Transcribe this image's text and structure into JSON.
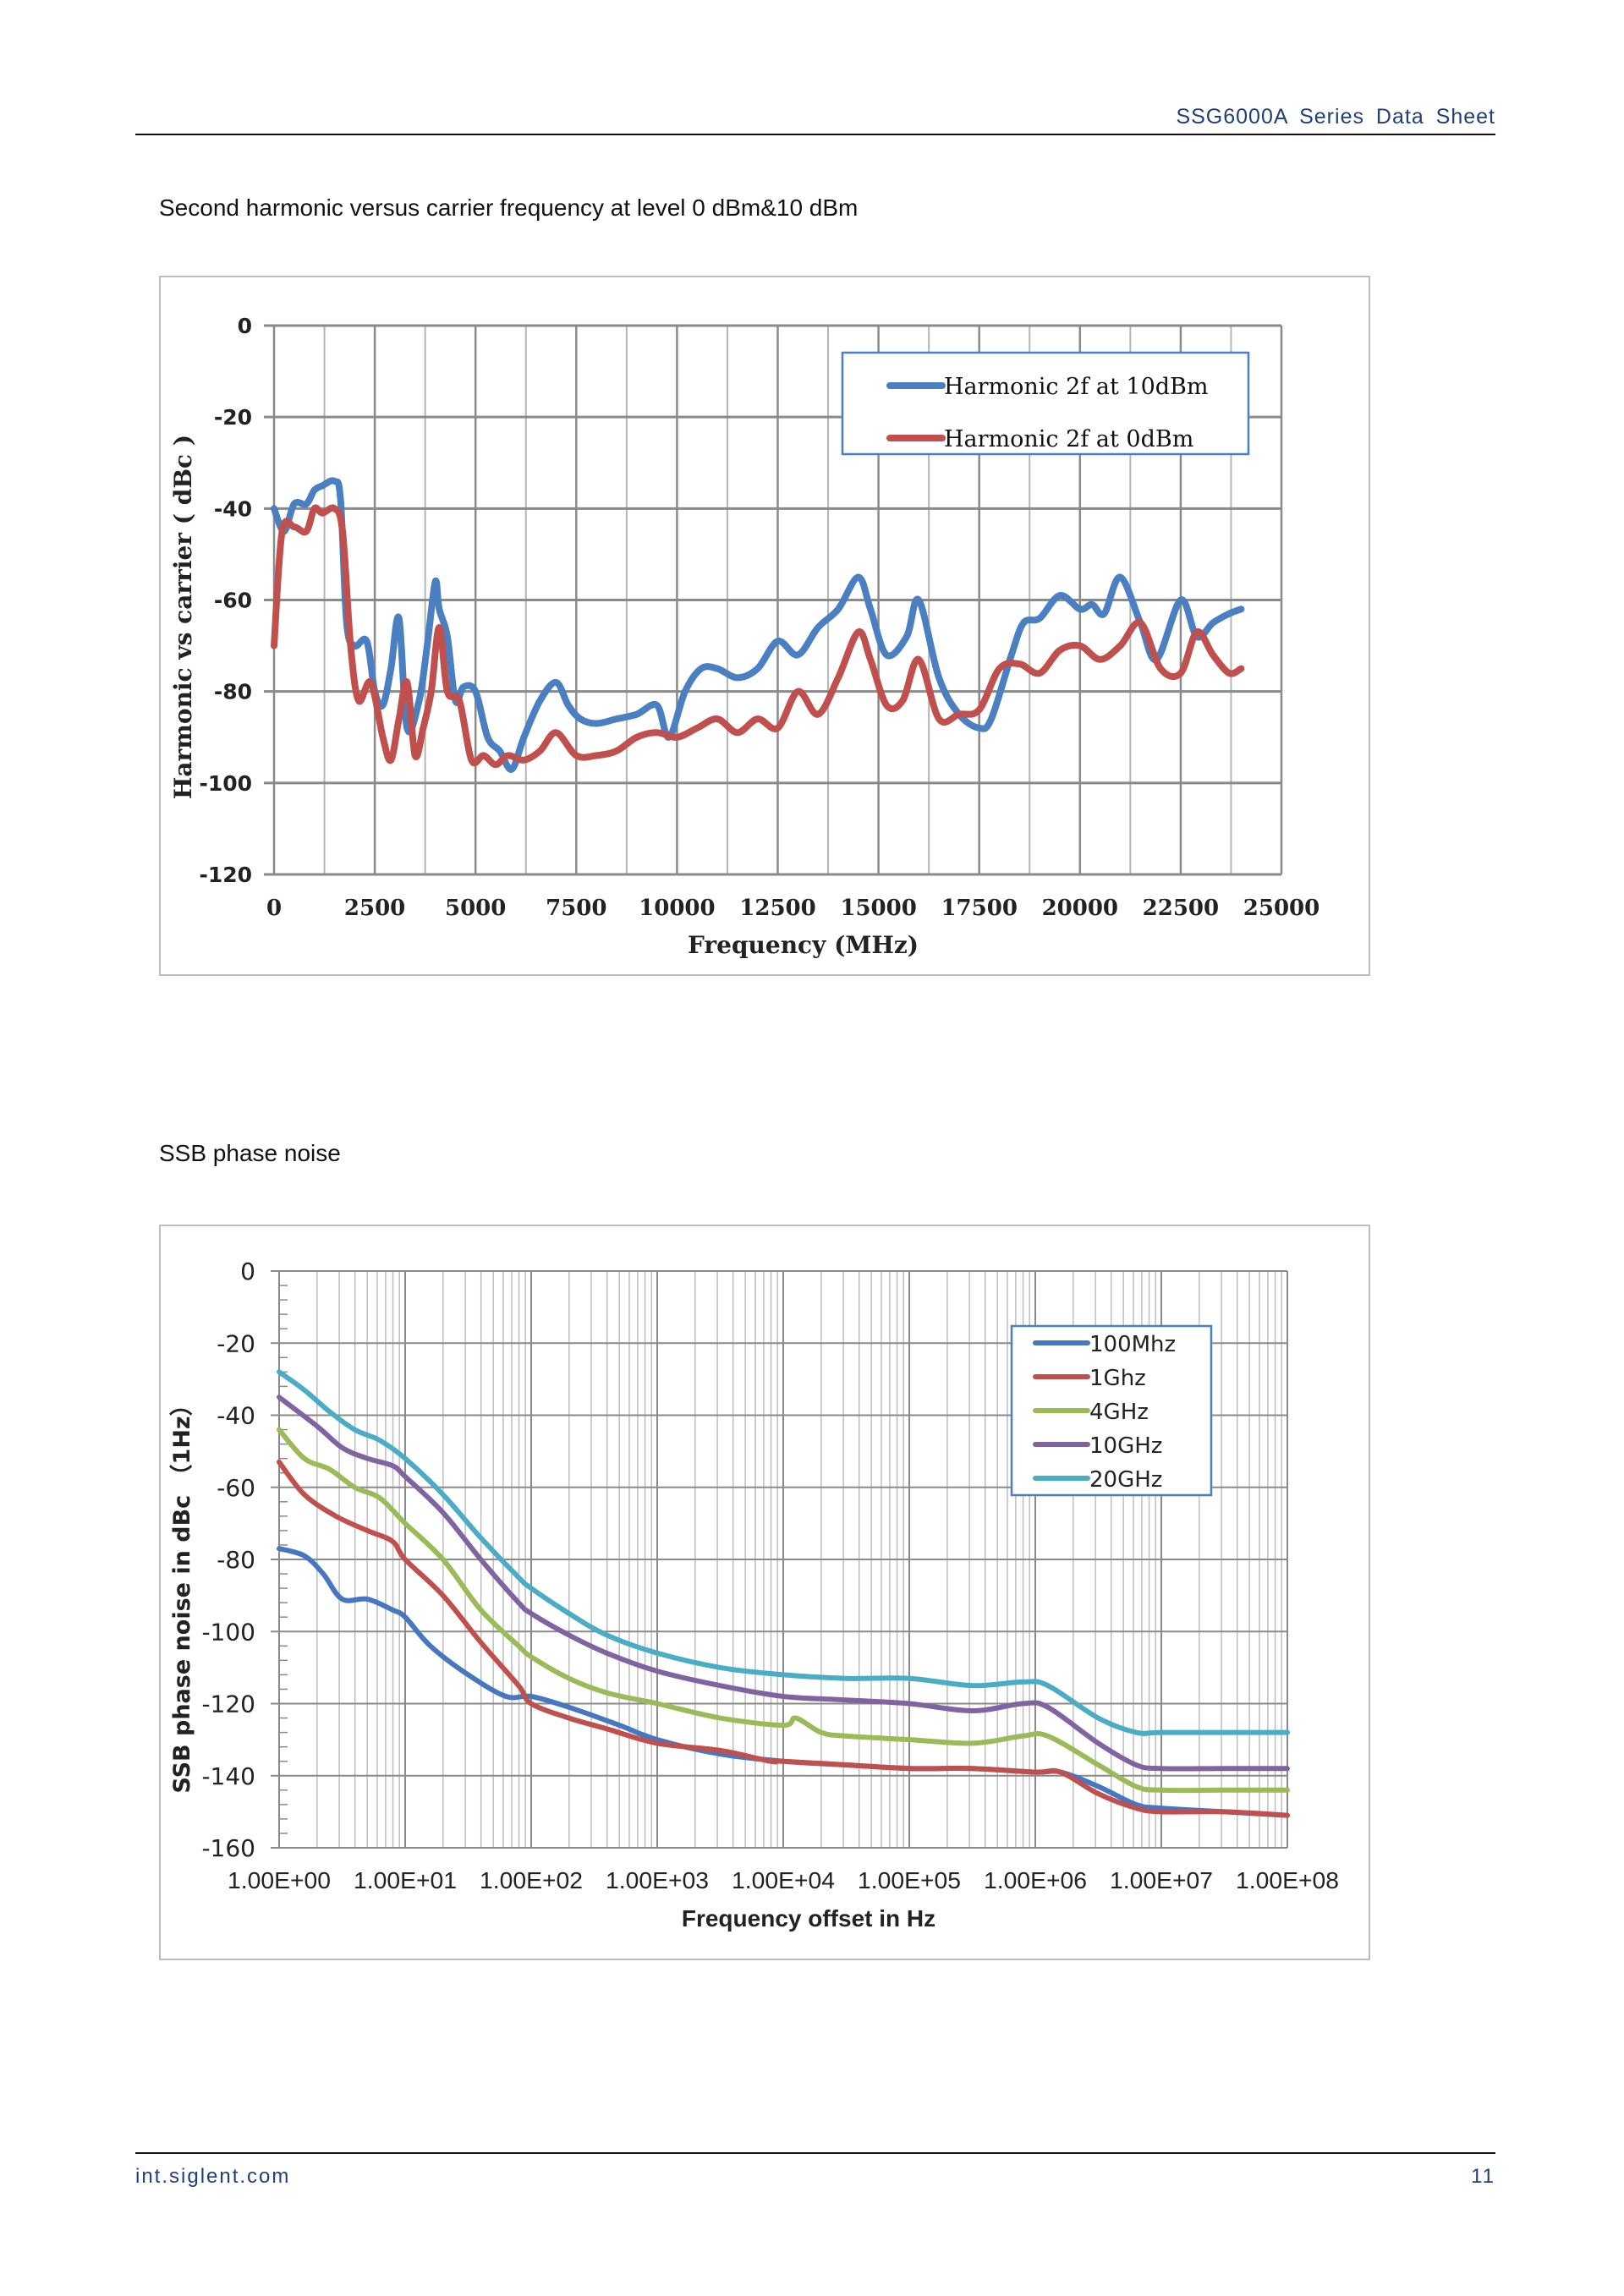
{
  "header": {
    "doc_title": "SSG6000A  Series  Data  Sheet"
  },
  "sections": [
    {
      "title": "Second harmonic versus carrier frequency at level 0 dBm&10 dBm"
    },
    {
      "title": "SSB phase noise"
    }
  ],
  "footer": {
    "website": "int.siglent.com",
    "page_number": "11"
  },
  "chart_data": [
    {
      "type": "line",
      "title": "",
      "xlabel": "Frequency (MHz)",
      "ylabel": "Harmonic vs carrier ( dBc )",
      "xlim": [
        0,
        25000
      ],
      "ylim": [
        -120,
        0
      ],
      "x_ticks": [
        "0",
        "2500",
        "5000",
        "7500",
        "10000",
        "12500",
        "15000",
        "17500",
        "20000",
        "22500",
        "25000"
      ],
      "y_ticks": [
        "0",
        "-20",
        "-40",
        "-60",
        "-80",
        "-100",
        "-120"
      ],
      "grid": true,
      "legend": "top-right",
      "series": [
        {
          "name": "Harmonic 2f at 10dBm",
          "color": "#4a7fc1",
          "x": [
            0,
            250,
            500,
            800,
            1000,
            1200,
            1500,
            1650,
            1800,
            2000,
            2300,
            2500,
            2700,
            2900,
            3100,
            3300,
            3600,
            3800,
            4000,
            4100,
            4300,
            4500,
            4700,
            5000,
            5300,
            5600,
            5900,
            6200,
            6600,
            7000,
            7300,
            7600,
            8000,
            8500,
            9000,
            9500,
            9800,
            10200,
            10600,
            11000,
            11500,
            12000,
            12500,
            13000,
            13500,
            14000,
            14500,
            14800,
            15200,
            15700,
            16000,
            16500,
            17000,
            17500,
            17800,
            18300,
            18600,
            19000,
            19500,
            20000,
            20300,
            20600,
            21000,
            21500,
            21900,
            22500,
            22900,
            23300,
            23700,
            24000
          ],
          "y": [
            -40,
            -45,
            -39,
            -39,
            -36,
            -35,
            -34,
            -38,
            -65,
            -70,
            -69,
            -80,
            -83,
            -75,
            -64,
            -88,
            -82,
            -70,
            -56,
            -62,
            -68,
            -82,
            -79,
            -80,
            -90,
            -93,
            -97,
            -90,
            -82,
            -78,
            -83,
            -86,
            -87,
            -86,
            -85,
            -83,
            -90,
            -80,
            -75,
            -75,
            -77,
            -75,
            -69,
            -72,
            -66,
            -62,
            -55,
            -62,
            -72,
            -68,
            -60,
            -77,
            -85,
            -88,
            -86,
            -72,
            -65,
            -64,
            -59,
            -62,
            -61,
            -63,
            -55,
            -65,
            -73,
            -60,
            -68,
            -65,
            -63,
            -62
          ]
        },
        {
          "name": "Harmonic 2f at 0dBm",
          "color": "#c0504d",
          "x": [
            0,
            200,
            500,
            800,
            1000,
            1200,
            1500,
            1700,
            1900,
            2100,
            2400,
            2700,
            2900,
            3100,
            3300,
            3500,
            3700,
            3900,
            4100,
            4300,
            4600,
            4900,
            5200,
            5500,
            5800,
            6200,
            6600,
            7000,
            7500,
            8000,
            8500,
            9000,
            9500,
            10000,
            10500,
            11000,
            11500,
            12000,
            12500,
            13000,
            13500,
            14000,
            14500,
            14800,
            15200,
            15600,
            16000,
            16500,
            17000,
            17500,
            18000,
            18500,
            19000,
            19500,
            20000,
            20500,
            21000,
            21500,
            22000,
            22500,
            22900,
            23300,
            23700,
            24000
          ],
          "y": [
            -70,
            -45,
            -44,
            -45,
            -40,
            -41,
            -40,
            -45,
            -70,
            -82,
            -78,
            -90,
            -95,
            -86,
            -78,
            -94,
            -88,
            -80,
            -66,
            -80,
            -82,
            -95,
            -94,
            -96,
            -94,
            -95,
            -93,
            -89,
            -94,
            -94,
            -93,
            -90,
            -89,
            -90,
            -88,
            -86,
            -89,
            -86,
            -88,
            -80,
            -85,
            -77,
            -67,
            -73,
            -83,
            -82,
            -73,
            -86,
            -85,
            -84,
            -75,
            -74,
            -76,
            -71,
            -70,
            -73,
            -70,
            -65,
            -75,
            -76,
            -67,
            -72,
            -76,
            -75
          ]
        }
      ]
    },
    {
      "type": "line",
      "title": "",
      "xlabel": "Frequency offset in Hz",
      "ylabel": "SSB phase noise in dBc （1Hz）",
      "xscale": "log",
      "xlim": [
        1,
        100000000
      ],
      "ylim": [
        -160,
        0
      ],
      "x_ticks": [
        "1.00E+00",
        "1.00E+01",
        "1.00E+02",
        "1.00E+03",
        "1.00E+04",
        "1.00E+05",
        "1.00E+06",
        "1.00E+07",
        "1.00E+08"
      ],
      "y_ticks": [
        "0",
        "-20",
        "-40",
        "-60",
        "-80",
        "-100",
        "-120",
        "-140",
        "-160"
      ],
      "grid": true,
      "legend": "top-right",
      "series": [
        {
          "name": "100Mhz",
          "color": "#4677c0",
          "x_log10": [
            0,
            0.2,
            0.35,
            0.5,
            0.7,
            0.9,
            1.0,
            1.2,
            1.5,
            1.8,
            2.0,
            2.3,
            2.7,
            3.0,
            3.5,
            4.0,
            4.5,
            5.0,
            5.5,
            6.0,
            6.2,
            6.5,
            6.8,
            7.0,
            7.5,
            8.0
          ],
          "y": [
            -77,
            -79,
            -84,
            -91,
            -91,
            -94,
            -96,
            -104,
            -112,
            -118,
            -118,
            -121,
            -126,
            -130,
            -134,
            -136,
            -137,
            -138,
            -138,
            -139,
            -139,
            -143,
            -148,
            -149,
            -150,
            -151
          ]
        },
        {
          "name": "1Ghz",
          "color": "#c0504d",
          "x_log10": [
            0,
            0.2,
            0.45,
            0.7,
            0.9,
            1.0,
            1.3,
            1.6,
            1.9,
            2.0,
            2.3,
            2.6,
            3.0,
            3.5,
            3.9,
            4.0,
            4.5,
            5.0,
            5.5,
            6.0,
            6.2,
            6.5,
            6.8,
            7.0,
            7.5,
            8.0
          ],
          "y": [
            -53,
            -62,
            -68,
            -72,
            -75,
            -80,
            -90,
            -103,
            -115,
            -120,
            -124,
            -127,
            -131,
            -133,
            -136,
            -136,
            -137,
            -138,
            -138,
            -139,
            -139,
            -145,
            -149,
            -150,
            -150,
            -151
          ]
        },
        {
          "name": "4GHz",
          "color": "#9bbb59",
          "x_log10": [
            0,
            0.2,
            0.4,
            0.6,
            0.8,
            1.0,
            1.3,
            1.6,
            1.9,
            2.0,
            2.3,
            2.6,
            3.0,
            3.5,
            4.0,
            4.1,
            4.3,
            4.5,
            5.0,
            5.5,
            5.9,
            6.1,
            6.5,
            6.8,
            7.0,
            7.5,
            8.0
          ],
          "y": [
            -44,
            -52,
            -55,
            -60,
            -63,
            -70,
            -80,
            -94,
            -104,
            -107,
            -113,
            -117,
            -120,
            -124,
            -126,
            -124,
            -128,
            -129,
            -130,
            -131,
            -129,
            -129,
            -137,
            -143,
            -144,
            -144,
            -144
          ]
        },
        {
          "name": "10GHz",
          "color": "#8064a2",
          "x_log10": [
            0,
            0.3,
            0.5,
            0.7,
            0.9,
            1.0,
            1.3,
            1.6,
            1.9,
            2.0,
            2.3,
            2.6,
            3.0,
            3.5,
            4.0,
            4.5,
            5.0,
            5.5,
            5.9,
            6.1,
            6.5,
            6.8,
            7.0,
            7.5,
            8.0
          ],
          "y": [
            -35,
            -43,
            -49,
            -52,
            -54,
            -57,
            -67,
            -80,
            -92,
            -95,
            -101,
            -106,
            -111,
            -115,
            -118,
            -119,
            -120,
            -122,
            -120,
            -121,
            -131,
            -137,
            -138,
            -138,
            -138
          ]
        },
        {
          "name": "20GHz",
          "color": "#4bacc6",
          "x_log10": [
            0,
            0.2,
            0.4,
            0.6,
            0.8,
            1.0,
            1.3,
            1.6,
            1.9,
            2.0,
            2.3,
            2.6,
            3.0,
            3.5,
            4.0,
            4.5,
            5.0,
            5.5,
            5.9,
            6.1,
            6.5,
            6.8,
            7.0,
            7.5,
            8.0
          ],
          "y": [
            -28,
            -33,
            -39,
            -44,
            -47,
            -52,
            -62,
            -74,
            -85,
            -88,
            -95,
            -101,
            -106,
            -110,
            -112,
            -113,
            -113,
            -115,
            -114,
            -115,
            -124,
            -128,
            -128,
            -128,
            -128
          ]
        }
      ]
    }
  ]
}
